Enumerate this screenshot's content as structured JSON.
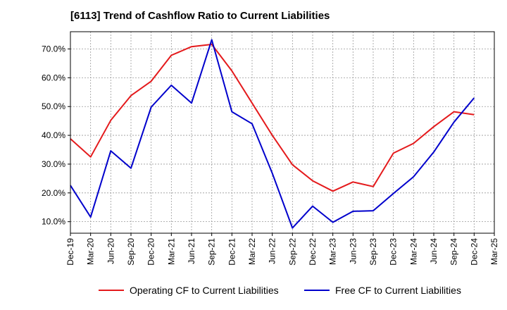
{
  "title": "[6113]  Trend of Cashflow Ratio to Current Liabilities",
  "chart_data": {
    "type": "line",
    "title": "[6113]  Trend of Cashflow Ratio to Current Liabilities",
    "xlabel": "",
    "ylabel": "",
    "categories": [
      "Dec-19",
      "Mar-20",
      "Jun-20",
      "Sep-20",
      "Dec-20",
      "Mar-21",
      "Jun-21",
      "Sep-21",
      "Dec-21",
      "Mar-22",
      "Jun-22",
      "Sep-22",
      "Dec-22",
      "Mar-23",
      "Jun-23",
      "Sep-23",
      "Dec-23",
      "Mar-24",
      "Jun-24",
      "Sep-24",
      "Dec-24",
      "Mar-25"
    ],
    "y_tick_labels": [
      "10.0%",
      "20.0%",
      "30.0%",
      "40.0%",
      "50.0%",
      "60.0%",
      "70.0%"
    ],
    "y_tick_values": [
      10,
      20,
      30,
      40,
      50,
      60,
      70
    ],
    "ylim": [
      6,
      76
    ],
    "grid": true,
    "legend_position": "bottom",
    "series": [
      {
        "name": "Operating CF to Current Liabilities",
        "color": "#e41a1c",
        "values": [
          38.8,
          32.5,
          45.2,
          53.8,
          58.8,
          67.8,
          70.8,
          71.6,
          62.4,
          51.2,
          40.0,
          29.8,
          24.2,
          20.6,
          23.8,
          22.2,
          33.8,
          37.2,
          43.0,
          48.2,
          47.2,
          null
        ]
      },
      {
        "name": "Free CF to Current Liabilities",
        "color": "#0000cc",
        "values": [
          22.6,
          11.6,
          34.6,
          28.6,
          49.8,
          57.4,
          51.2,
          73.2,
          48.2,
          44.0,
          26.8,
          7.8,
          15.4,
          9.8,
          13.6,
          13.8,
          19.8,
          25.6,
          34.2,
          44.6,
          53.0,
          null
        ]
      }
    ]
  }
}
